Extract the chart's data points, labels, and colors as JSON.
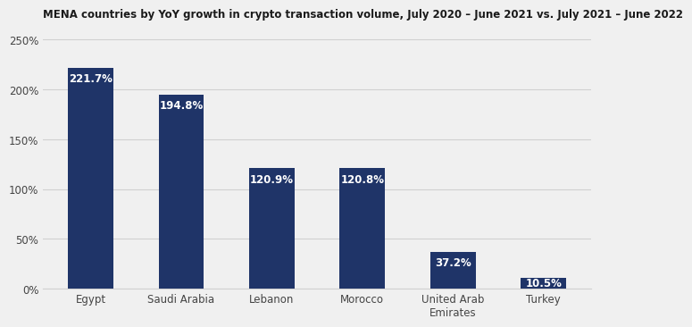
{
  "title": "MENA countries by YoY growth in crypto transaction volume, July 2020 – June 2021 vs. July 2021 – June 2022",
  "categories": [
    "Egypt",
    "Saudi Arabia",
    "Lebanon",
    "Morocco",
    "United Arab\nEmirates",
    "Turkey"
  ],
  "values": [
    221.7,
    194.8,
    120.9,
    120.8,
    37.2,
    10.5
  ],
  "bar_color": "#1f3468",
  "label_color": "#ffffff",
  "background_color": "#f0f0f0",
  "ylim": [
    0,
    260
  ],
  "yticks": [
    0,
    50,
    100,
    150,
    200,
    250
  ],
  "title_fontsize": 8.5,
  "label_fontsize": 8.5,
  "tick_fontsize": 8.5,
  "grid_color": "#d0d0d0"
}
